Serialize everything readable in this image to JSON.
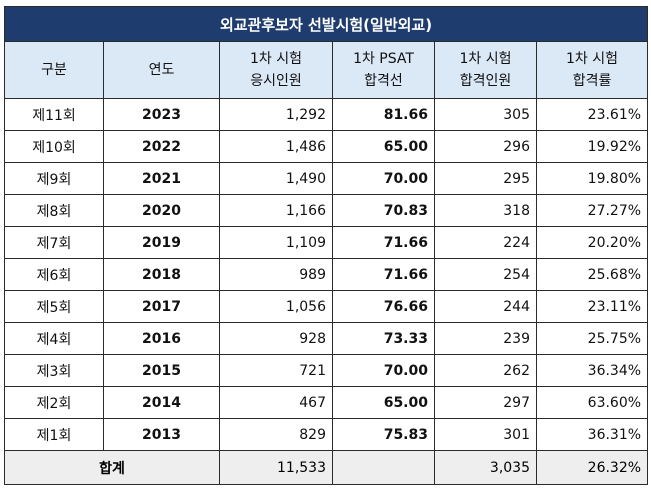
{
  "title": "외교관후보자 선발시험(일반외교)",
  "headers": [
    {
      "line1": "구분",
      "line2": ""
    },
    {
      "line1": "연도",
      "line2": ""
    },
    {
      "line1": "1차 시험",
      "line2": "응시인원"
    },
    {
      "line1": "1차 PSAT",
      "line2": "합격선"
    },
    {
      "line1": "1차 시험",
      "line2": "합격인원"
    },
    {
      "line1": "1차 시험",
      "line2": "합격률"
    }
  ],
  "rows": [
    {
      "round": "제11회",
      "year": "2023",
      "applicants": "1,292",
      "cutoff": "81.66",
      "passers": "305",
      "rate": "23.61%"
    },
    {
      "round": "제10회",
      "year": "2022",
      "applicants": "1,486",
      "cutoff": "65.00",
      "passers": "296",
      "rate": "19.92%"
    },
    {
      "round": "제9회",
      "year": "2021",
      "applicants": "1,490",
      "cutoff": "70.00",
      "passers": "295",
      "rate": "19.80%"
    },
    {
      "round": "제8회",
      "year": "2020",
      "applicants": "1,166",
      "cutoff": "70.83",
      "passers": "318",
      "rate": "27.27%"
    },
    {
      "round": "제7회",
      "year": "2019",
      "applicants": "1,109",
      "cutoff": "71.66",
      "passers": "224",
      "rate": "20.20%"
    },
    {
      "round": "제6회",
      "year": "2018",
      "applicants": "989",
      "cutoff": "71.66",
      "passers": "254",
      "rate": "25.68%"
    },
    {
      "round": "제5회",
      "year": "2017",
      "applicants": "1,056",
      "cutoff": "76.66",
      "passers": "244",
      "rate": "23.11%"
    },
    {
      "round": "제4회",
      "year": "2016",
      "applicants": "928",
      "cutoff": "73.33",
      "passers": "239",
      "rate": "25.75%"
    },
    {
      "round": "제3회",
      "year": "2015",
      "applicants": "721",
      "cutoff": "70.00",
      "passers": "262",
      "rate": "36.34%"
    },
    {
      "round": "제2회",
      "year": "2014",
      "applicants": "467",
      "cutoff": "65.00",
      "passers": "297",
      "rate": "63.60%"
    },
    {
      "round": "제1회",
      "year": "2013",
      "applicants": "829",
      "cutoff": "75.83",
      "passers": "301",
      "rate": "36.31%"
    }
  ],
  "total": {
    "label": "합계",
    "applicants": "11,533",
    "passers": "3,035",
    "rate": "26.32%"
  },
  "colors": {
    "title_bg": "#1f3c6e",
    "header_bg": "#dbe8f6",
    "cutoff_text": "#1a72c4",
    "total_bg": "#eeeeee"
  }
}
